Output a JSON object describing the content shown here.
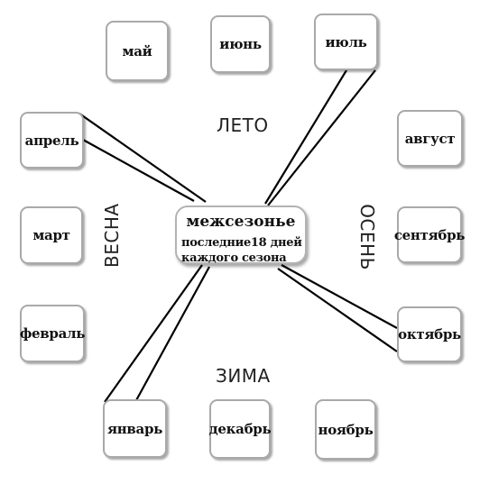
{
  "center": {
    "title": "межсезонье",
    "line1": "последние18 дней",
    "line2": "каждого сезона"
  },
  "seasons": {
    "summer": "ЛЕТО",
    "spring": "ВЕСНА",
    "autumn": "ОСЕНЬ",
    "winter": "ЗИМА"
  },
  "months": {
    "may": "май",
    "june": "июнь",
    "july": "июль",
    "april": "апрель",
    "august": "август",
    "march": "март",
    "september": "сентябрь",
    "february": "февраль",
    "october": "октябрь",
    "january": "январь",
    "december": "декабрь",
    "november": "ноябрь"
  }
}
